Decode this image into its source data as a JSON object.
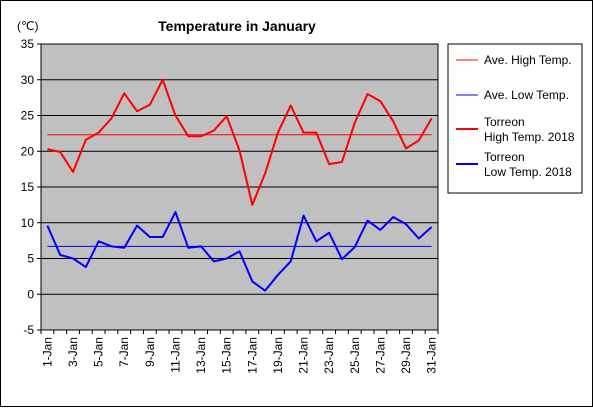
{
  "chart_data": {
    "type": "line",
    "title": "Temperature in January",
    "unit_label": "(℃)",
    "categories": [
      "1-Jan",
      "2-Jan",
      "3-Jan",
      "4-Jan",
      "5-Jan",
      "6-Jan",
      "7-Jan",
      "8-Jan",
      "9-Jan",
      "10-Jan",
      "11-Jan",
      "12-Jan",
      "13-Jan",
      "14-Jan",
      "15-Jan",
      "16-Jan",
      "17-Jan",
      "18-Jan",
      "19-Jan",
      "20-Jan",
      "21-Jan",
      "22-Jan",
      "23-Jan",
      "24-Jan",
      "25-Jan",
      "26-Jan",
      "27-Jan",
      "28-Jan",
      "29-Jan",
      "30-Jan",
      "31-Jan"
    ],
    "x_tick_labels": [
      "1-Jan",
      "3-Jan",
      "5-Jan",
      "7-Jan",
      "9-Jan",
      "11-Jan",
      "13-Jan",
      "15-Jan",
      "17-Jan",
      "19-Jan",
      "21-Jan",
      "23-Jan",
      "25-Jan",
      "27-Jan",
      "29-Jan",
      "31-Jan"
    ],
    "y_ticks": [
      35,
      30,
      25,
      20,
      15,
      10,
      5,
      0,
      -5
    ],
    "ylim": [
      -5,
      35
    ],
    "grid": true,
    "legend_placement": "right",
    "series": [
      {
        "name": "Ave. High Temp.",
        "color": "#ff0000",
        "width": 1,
        "values": [
          22.3,
          22.3,
          22.3,
          22.3,
          22.3,
          22.3,
          22.3,
          22.3,
          22.3,
          22.3,
          22.3,
          22.3,
          22.3,
          22.3,
          22.3,
          22.3,
          22.3,
          22.3,
          22.3,
          22.3,
          22.3,
          22.3,
          22.3,
          22.3,
          22.3,
          22.3,
          22.3,
          22.3,
          22.3,
          22.3,
          22.3
        ]
      },
      {
        "name": "Ave. Low Temp.",
        "color": "#0000ff",
        "width": 1,
        "values": [
          6.7,
          6.7,
          6.7,
          6.7,
          6.7,
          6.7,
          6.7,
          6.7,
          6.7,
          6.7,
          6.7,
          6.7,
          6.7,
          6.7,
          6.7,
          6.7,
          6.7,
          6.7,
          6.7,
          6.7,
          6.7,
          6.7,
          6.7,
          6.7,
          6.7,
          6.7,
          6.7,
          6.7,
          6.7,
          6.7,
          6.7
        ]
      },
      {
        "name": "Torreon High Temp. 2018",
        "legend_lines": [
          "Torreon",
          "High Temp. 2018"
        ],
        "color": "#ff0000",
        "width": 2,
        "values": [
          20.3,
          19.9,
          17.1,
          21.6,
          22.6,
          24.6,
          28.1,
          25.6,
          26.5,
          30.0,
          25.0,
          22.1,
          22.1,
          22.9,
          24.9,
          20.1,
          12.5,
          16.9,
          22.6,
          26.4,
          22.6,
          22.6,
          18.2,
          18.5,
          24.0,
          28.0,
          27.0,
          24.2,
          20.4,
          21.5,
          24.6
        ]
      },
      {
        "name": "Torreon Low Temp. 2018",
        "legend_lines": [
          "Torreon",
          "Low Temp. 2018"
        ],
        "color": "#0000ff",
        "width": 2,
        "values": [
          9.6,
          5.5,
          5.0,
          3.8,
          7.4,
          6.7,
          6.5,
          9.6,
          8.0,
          8.0,
          11.5,
          6.5,
          6.7,
          4.6,
          5.0,
          6.0,
          1.8,
          0.5,
          2.7,
          4.6,
          11.0,
          7.4,
          8.6,
          4.9,
          6.6,
          10.3,
          9.0,
          10.8,
          9.8,
          7.8,
          9.4
        ]
      }
    ]
  }
}
